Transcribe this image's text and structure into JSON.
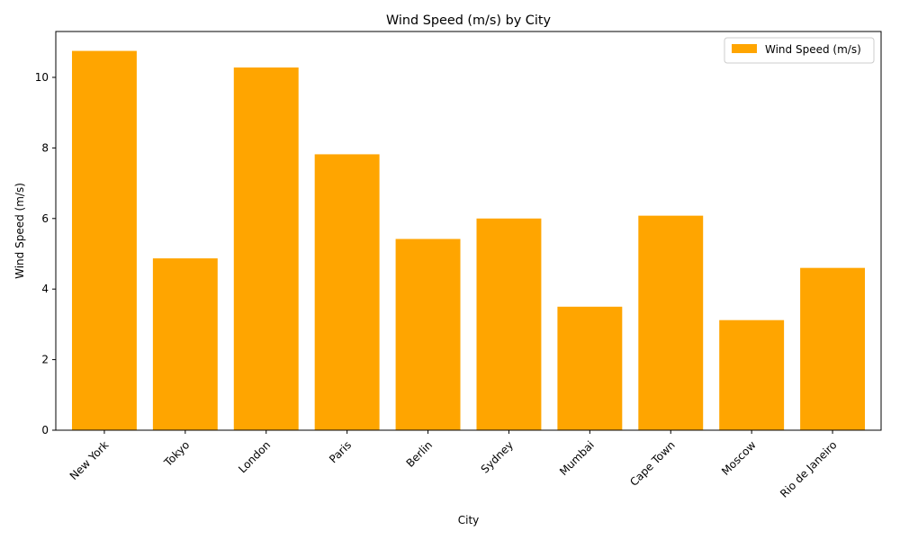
{
  "chart_data": {
    "type": "bar",
    "title": "Wind Speed (m/s) by City",
    "xlabel": "City",
    "ylabel": "Wind Speed (m/s)",
    "categories": [
      "New York",
      "Tokyo",
      "London",
      "Paris",
      "Berlin",
      "Sydney",
      "Mumbai",
      "Cape Town",
      "Moscow",
      "Rio de Janeiro"
    ],
    "series": [
      {
        "name": "Wind Speed (m/s)",
        "color": "#ffa500",
        "values": [
          10.75,
          4.87,
          10.28,
          7.82,
          5.42,
          6.0,
          3.5,
          6.08,
          3.12,
          4.6
        ]
      }
    ],
    "ylim": [
      0,
      11.3
    ],
    "yticks": [
      0,
      2,
      4,
      6,
      8,
      10
    ],
    "grid": false,
    "legend_position": "top-right"
  }
}
